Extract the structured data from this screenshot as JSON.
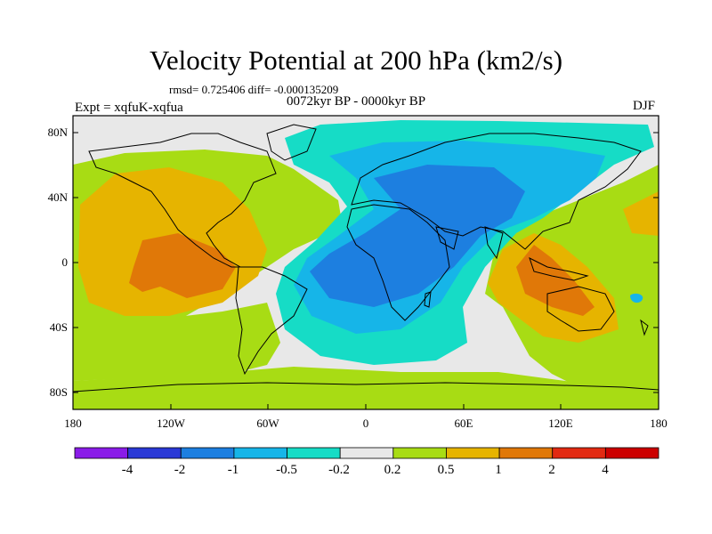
{
  "title": "Velocity Potential at 200 hPa (km2/s)",
  "stats": "rmsd= 0.725406 diff= -0.000135209",
  "period": "0072kyr BP - 0000kyr BP",
  "experiment": "Expt = xqfuK-xqfua",
  "season": "DJF",
  "lat_labels": [
    "80N",
    "40N",
    "0",
    "40S",
    "80S"
  ],
  "lon_labels": [
    "180",
    "120W",
    "60W",
    "0",
    "60E",
    "120E",
    "180"
  ],
  "colorbar": {
    "labels": [
      "-4",
      "-2",
      "-1",
      "-0.5",
      "-0.2",
      "0.2",
      "0.5",
      "1",
      "2",
      "4"
    ],
    "colors": [
      "#8a1ce8",
      "#2a39d6",
      "#1d7fe0",
      "#16b5e8",
      "#16dcc6",
      "#e8e8e8",
      "#a8dc14",
      "#e6b400",
      "#e07808",
      "#e22a12",
      "#cc0000"
    ]
  },
  "palette": {
    "land_line": "#000000",
    "neutral": "#e8e8e8",
    "pos_0_2": "#a8dc14",
    "pos_0_5": "#e6b400",
    "pos_1": "#e07808",
    "neg_0_2": "#16dcc6",
    "neg_0_5": "#16b5e8",
    "neg_1": "#1d7fe0"
  }
}
